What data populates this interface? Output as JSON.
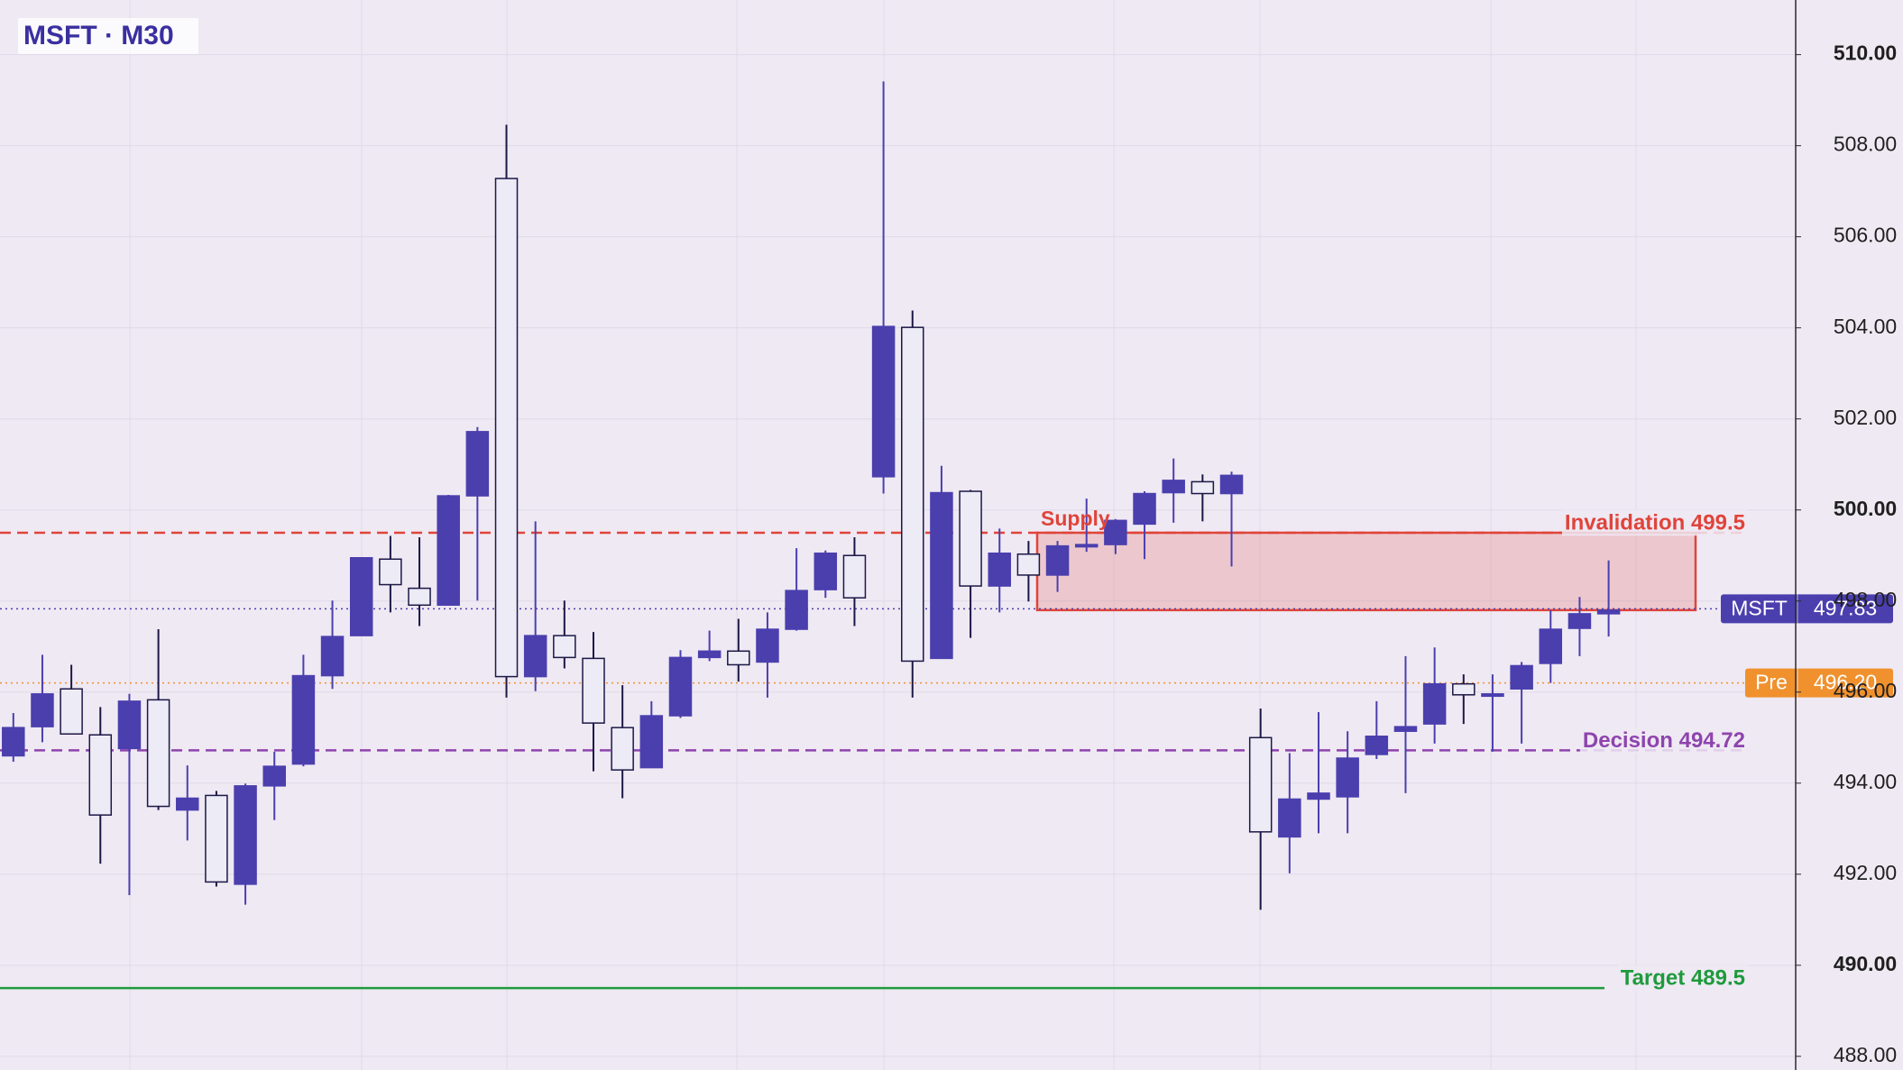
{
  "chart_data": {
    "type": "candlestick",
    "title": "MSFT · M30",
    "up_color": "#4b3fae",
    "down_color": "#ecebf6",
    "outline_color": "#1c1846",
    "grid": true,
    "ylim": [
      487.7,
      511.2
    ],
    "yticks": [
      {
        "value": 488,
        "label": "488.00"
      },
      {
        "value": 490,
        "label": "490.00"
      },
      {
        "value": 492,
        "label": "492.00"
      },
      {
        "value": 494,
        "label": "494.00"
      },
      {
        "value": 496,
        "label": "496.00"
      },
      {
        "value": 498,
        "label": "498.00"
      },
      {
        "value": 500,
        "label": "500.00"
      },
      {
        "value": 502,
        "label": "502.00"
      },
      {
        "value": 504,
        "label": "504.00"
      },
      {
        "value": 506,
        "label": "506.00"
      },
      {
        "value": 508,
        "label": "508.00"
      },
      {
        "value": 510,
        "label": "510.00"
      }
    ],
    "open": [
      494.6,
      495.24,
      496.07,
      495.06,
      494.76,
      495.83,
      493.41,
      493.73,
      491.78,
      493.94,
      494.42,
      496.36,
      497.24,
      498.92,
      498.28,
      497.91,
      500.31,
      507.28,
      496.34,
      497.24,
      496.74,
      495.22,
      494.34,
      495.48,
      496.76,
      496.9,
      496.66,
      497.38,
      498.25,
      499.0,
      500.73,
      504.01,
      496.74,
      500.41,
      498.33,
      499.03,
      498.57,
      499.19,
      499.24,
      499.69,
      500.38,
      500.62,
      500.36,
      495.0,
      492.82,
      493.65,
      493.7,
      494.63,
      495.14,
      495.3,
      496.18,
      495.91,
      496.07,
      496.63,
      497.4,
      497.72
    ],
    "high": [
      495.54,
      496.82,
      496.6,
      495.67,
      495.96,
      497.38,
      494.39,
      493.83,
      493.99,
      494.69,
      496.82,
      498.01,
      498.95,
      499.43,
      499.4,
      500.33,
      501.82,
      508.46,
      499.75,
      498.01,
      497.32,
      496.15,
      495.8,
      496.92,
      497.35,
      497.61,
      497.75,
      499.16,
      499.11,
      499.4,
      509.41,
      504.38,
      500.97,
      500.44,
      499.59,
      499.32,
      499.32,
      500.25,
      499.8,
      500.41,
      501.13,
      500.78,
      500.84,
      495.64,
      494.66,
      495.56,
      495.14,
      495.8,
      496.79,
      496.98,
      496.39,
      496.39,
      496.66,
      497.8,
      498.09,
      498.89
    ],
    "low": [
      494.47,
      494.9,
      495.08,
      492.23,
      491.54,
      493.41,
      492.74,
      491.73,
      491.33,
      493.19,
      494.37,
      496.07,
      497.24,
      497.75,
      497.45,
      497.91,
      498.01,
      495.88,
      496.02,
      496.52,
      494.26,
      493.67,
      494.34,
      495.43,
      496.68,
      496.23,
      495.88,
      497.35,
      498.07,
      497.45,
      500.36,
      495.88,
      496.74,
      497.19,
      497.75,
      497.99,
      498.2,
      499.08,
      499.03,
      498.92,
      499.72,
      499.75,
      498.76,
      491.22,
      492.02,
      492.9,
      492.9,
      494.53,
      493.78,
      494.87,
      495.3,
      494.69,
      494.87,
      496.2,
      496.79,
      497.22
    ],
    "close": [
      495.22,
      495.96,
      495.08,
      493.3,
      495.8,
      493.49,
      493.67,
      491.83,
      493.94,
      494.37,
      496.36,
      497.22,
      498.95,
      498.36,
      497.91,
      500.31,
      501.72,
      496.34,
      497.24,
      496.76,
      495.32,
      494.29,
      495.48,
      496.76,
      496.9,
      496.6,
      497.38,
      498.23,
      499.05,
      498.07,
      504.03,
      496.68,
      500.38,
      498.33,
      499.05,
      498.57,
      499.21,
      499.24,
      499.77,
      500.36,
      500.65,
      500.36,
      500.76,
      492.93,
      493.65,
      493.78,
      494.55,
      495.03,
      495.24,
      496.18,
      495.94,
      495.96,
      496.58,
      497.38,
      497.72,
      497.8
    ],
    "zone": {
      "label": "Supply",
      "top": 499.5,
      "bottom": 497.8,
      "color": "#e0443a"
    },
    "levels": [
      {
        "label": "Invalidation 499.5",
        "value": 499.5,
        "color": "#e0443a",
        "style": "dashed"
      },
      {
        "label": "Decision 494.72",
        "value": 494.72,
        "color": "#8e44ad",
        "style": "dashed"
      },
      {
        "label": "Target 489.5",
        "value": 489.5,
        "color": "#1e9b3c",
        "style": "solid"
      }
    ],
    "price_tags": [
      {
        "label": "MSFT",
        "value": 497.83,
        "value_label": "497.83",
        "color": "#4b3fae",
        "line_color": "#4b3fae"
      },
      {
        "label": "Pre",
        "value": 496.2,
        "value_label": "496.20",
        "color": "#f0912e",
        "line_color": "#f0912e"
      }
    ]
  }
}
